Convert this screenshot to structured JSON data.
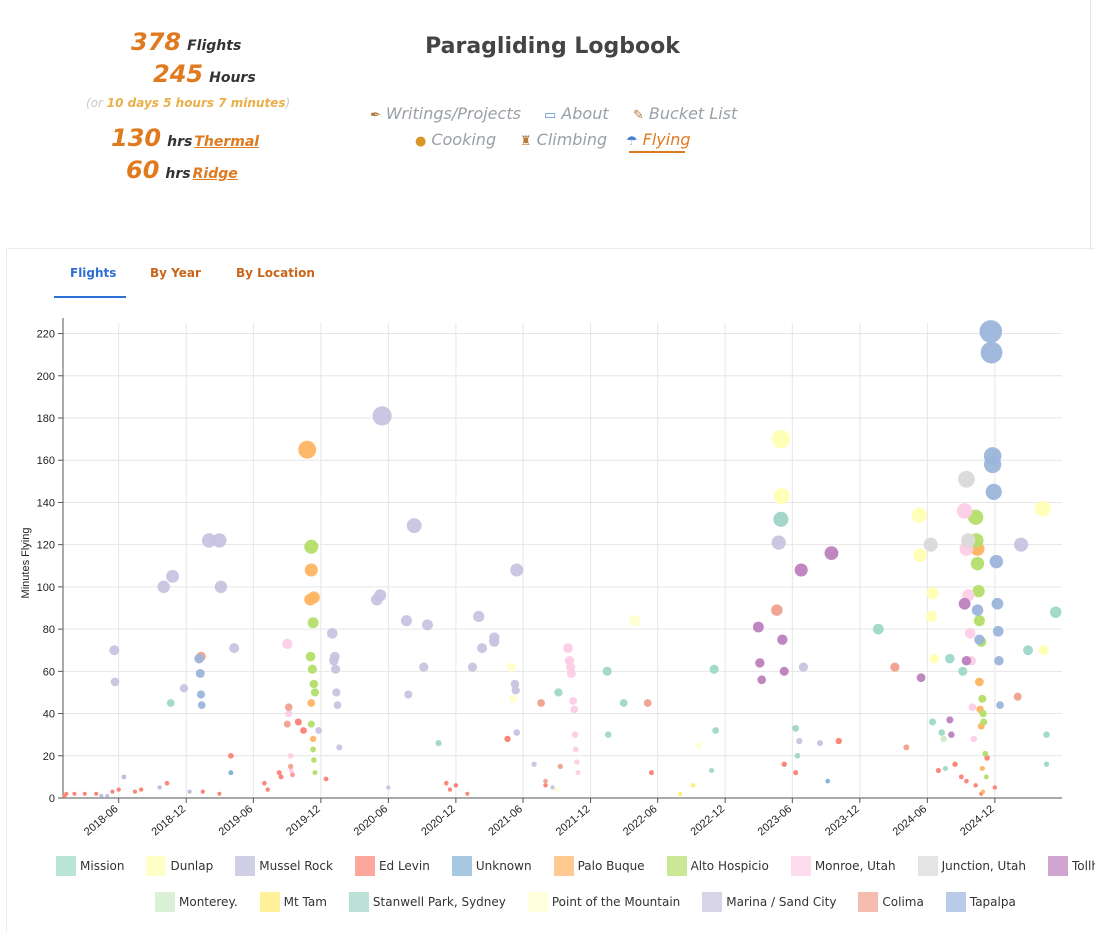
{
  "stats": {
    "flights_value": "378",
    "flights_label": "Flights",
    "hours_value": "245",
    "hours_label": "Hours",
    "duration_prefix": "(or ",
    "duration_text": "10 days 5 hours 7 minutes",
    "duration_suffix": ")",
    "thermal_value": "130",
    "thermal_unit": "hrs",
    "thermal_link": "Thermal",
    "ridge_value": "60",
    "ridge_unit": "hrs",
    "ridge_link": "Ridge"
  },
  "header": {
    "title": "Paragliding Logbook"
  },
  "nav": {
    "items": [
      {
        "label": "Writings/Projects",
        "icon": "pen-icon"
      },
      {
        "label": "About",
        "icon": "id-card-icon"
      },
      {
        "label": "Bucket List",
        "icon": "memo-icon"
      },
      {
        "label": "Cooking",
        "icon": "burger-icon"
      },
      {
        "label": "Climbing",
        "icon": "climber-icon"
      },
      {
        "label": "Flying",
        "icon": "parachute-icon",
        "active": true
      }
    ]
  },
  "tabs": [
    {
      "label": "Flights",
      "active": true
    },
    {
      "label": "By Year"
    },
    {
      "label": "By Location"
    }
  ],
  "chart_data": {
    "type": "scatter",
    "ylabel": "Minutes Flying",
    "ylim": [
      0,
      225
    ],
    "yticks": [
      0,
      20,
      40,
      60,
      80,
      100,
      120,
      140,
      160,
      180,
      200,
      220
    ],
    "xlim": [
      "2018-01-01",
      "2025-06-01"
    ],
    "xticks": [
      "2018-06",
      "2018-12",
      "2019-06",
      "2019-12",
      "2020-06",
      "2020-12",
      "2021-06",
      "2021-12",
      "2022-06",
      "2022-12",
      "2023-06",
      "2023-12",
      "2024-06",
      "2024-12"
    ],
    "grid": true,
    "legend_position": "bottom",
    "note": "point size scales with minutes flown",
    "series": [
      {
        "name": "Mission",
        "color": "#9ed8c8",
        "points": [
          [
            "2018-10-20",
            45
          ],
          [
            "2020-10-15",
            26
          ],
          [
            "2022-01-15",
            60
          ],
          [
            "2022-01-18",
            30
          ],
          [
            "2022-03-01",
            45
          ],
          [
            "2021-09-05",
            50
          ],
          [
            "2022-11-01",
            61
          ],
          [
            "2022-11-05",
            32
          ],
          [
            "2022-10-25",
            13
          ],
          [
            "2024-01-20",
            80
          ],
          [
            "2024-06-15",
            36
          ],
          [
            "2024-08-01",
            66
          ],
          [
            "2024-07-10",
            31
          ],
          [
            "2024-07-20",
            14
          ],
          [
            "2024-09-05",
            60
          ],
          [
            "2025-03-01",
            70
          ],
          [
            "2025-05-15",
            88
          ],
          [
            "2025-04-20",
            30
          ],
          [
            "2025-04-20",
            16
          ]
        ]
      },
      {
        "name": "Dunlap",
        "color": "#ffffb3",
        "points": [
          [
            "2023-05-01",
            170
          ],
          [
            "2023-05-03",
            143
          ],
          [
            "2024-05-10",
            134
          ],
          [
            "2024-05-12",
            115
          ],
          [
            "2024-06-15",
            97
          ],
          [
            "2024-06-12",
            86
          ],
          [
            "2024-06-20",
            66
          ],
          [
            "2025-04-10",
            137
          ],
          [
            "2025-04-12",
            70
          ]
        ]
      },
      {
        "name": "Mussel Rock",
        "color": "#bebada",
        "points": [
          [
            "2018-04-15",
            1
          ],
          [
            "2018-05-01",
            1
          ],
          [
            "2018-06-15",
            10
          ],
          [
            "2018-09-20",
            5
          ],
          [
            "2018-12-10",
            3
          ]
        ]
      },
      {
        "name": "Ed Levin",
        "color": "#fb8072",
        "points": [
          [
            "2018-01-05",
            1
          ],
          [
            "2018-01-10",
            2
          ],
          [
            "2018-02-01",
            2
          ],
          [
            "2018-03-01",
            2
          ],
          [
            "2018-04-01",
            2
          ],
          [
            "2018-05-15",
            3
          ],
          [
            "2018-06-01",
            4
          ],
          [
            "2018-07-15",
            3
          ],
          [
            "2018-08-01",
            4
          ],
          [
            "2018-10-10",
            7
          ],
          [
            "2019-01-15",
            3
          ],
          [
            "2019-03-01",
            2
          ],
          [
            "2019-04-01",
            20
          ],
          [
            "2019-07-01",
            7
          ],
          [
            "2019-07-10",
            4
          ],
          [
            "2019-08-10",
            12
          ],
          [
            "2019-08-15",
            10
          ],
          [
            "2019-10-01",
            36
          ],
          [
            "2019-10-15",
            32
          ],
          [
            "2019-12-15",
            9
          ],
          [
            "2020-11-05",
            7
          ],
          [
            "2020-11-15",
            4
          ],
          [
            "2020-12-01",
            6
          ],
          [
            "2021-01-01",
            2
          ],
          [
            "2021-04-20",
            28
          ],
          [
            "2021-08-01",
            6
          ],
          [
            "2022-05-15",
            12
          ],
          [
            "2023-05-10",
            16
          ],
          [
            "2023-06-10",
            12
          ],
          [
            "2023-10-05",
            27
          ],
          [
            "2024-07-01",
            13
          ],
          [
            "2024-08-15",
            16
          ],
          [
            "2024-09-01",
            10
          ],
          [
            "2024-09-15",
            8
          ],
          [
            "2024-10-10",
            6
          ],
          [
            "2024-10-25",
            2
          ],
          [
            "2024-11-10",
            19
          ],
          [
            "2024-12-01",
            5
          ]
        ]
      },
      {
        "name": "Unknown",
        "color": "#80b1d3",
        "points": [
          [
            "2019-04-01",
            12
          ],
          [
            "2023-09-05",
            8
          ]
        ]
      },
      {
        "name": "Palo Buque",
        "color": "#fdb462",
        "points": [
          [
            "2019-10-25",
            165
          ],
          [
            "2019-11-05",
            108
          ],
          [
            "2019-11-02",
            94
          ],
          [
            "2019-11-12",
            95
          ],
          [
            "2019-11-05",
            45
          ],
          [
            "2019-11-10",
            28
          ],
          [
            "2024-10-10",
            119
          ],
          [
            "2024-10-15",
            118
          ],
          [
            "2024-10-20",
            55
          ],
          [
            "2024-10-22",
            42
          ],
          [
            "2024-10-25",
            34
          ],
          [
            "2024-10-28",
            14
          ],
          [
            "2024-10-30",
            3
          ]
        ]
      },
      {
        "name": "Alto Hospicio",
        "color": "#b3de69",
        "points": [
          [
            "2019-11-05",
            119
          ],
          [
            "2019-11-10",
            83
          ],
          [
            "2019-11-03",
            67
          ],
          [
            "2019-11-08",
            61
          ],
          [
            "2019-11-12",
            54
          ],
          [
            "2019-11-15",
            50
          ],
          [
            "2019-11-05",
            35
          ],
          [
            "2019-11-10",
            23
          ],
          [
            "2019-11-12",
            18
          ],
          [
            "2019-11-15",
            12
          ],
          [
            "2024-10-10",
            133
          ],
          [
            "2024-10-12",
            122
          ],
          [
            "2024-10-15",
            111
          ],
          [
            "2024-10-18",
            98
          ],
          [
            "2024-10-20",
            84
          ],
          [
            "2024-10-25",
            74
          ],
          [
            "2024-10-28",
            47
          ],
          [
            "2024-10-30",
            40
          ],
          [
            "2024-11-01",
            36
          ],
          [
            "2024-11-05",
            21
          ],
          [
            "2024-11-08",
            10
          ]
        ]
      },
      {
        "name": "Monroe, Utah",
        "color": "#fccde5",
        "points": [
          [
            "2019-09-01",
            73
          ],
          [
            "2019-09-05",
            40
          ],
          [
            "2019-09-10",
            20
          ],
          [
            "2019-09-12",
            13
          ],
          [
            "2021-10-01",
            71
          ],
          [
            "2021-10-05",
            65
          ],
          [
            "2021-10-08",
            62
          ],
          [
            "2021-10-10",
            59
          ],
          [
            "2021-10-15",
            46
          ],
          [
            "2021-10-18",
            42
          ],
          [
            "2021-10-20",
            30
          ],
          [
            "2021-10-22",
            23
          ],
          [
            "2021-10-25",
            17
          ],
          [
            "2021-10-28",
            12
          ],
          [
            "2024-09-10",
            136
          ],
          [
            "2024-09-15",
            118
          ],
          [
            "2024-09-20",
            96
          ],
          [
            "2024-09-25",
            78
          ],
          [
            "2024-09-28",
            65
          ],
          [
            "2024-10-01",
            43
          ],
          [
            "2024-10-05",
            28
          ]
        ]
      },
      {
        "name": "Junction, Utah",
        "color": "#d9d9d9",
        "points": [
          [
            "2024-06-10",
            120
          ],
          [
            "2024-09-15",
            151
          ],
          [
            "2024-09-20",
            122
          ]
        ]
      },
      {
        "name": "Tollhouse",
        "color": "#bc80bd",
        "points": [
          [
            "2023-05-05",
            75
          ],
          [
            "2023-05-10",
            60
          ],
          [
            "2023-06-25",
            108
          ],
          [
            "2023-09-15",
            116
          ],
          [
            "2024-05-15",
            57
          ],
          [
            "2024-08-01",
            37
          ],
          [
            "2024-08-05",
            30
          ],
          [
            "2024-09-10",
            92
          ],
          [
            "2024-09-15",
            65
          ],
          [
            "2023-03-01",
            81
          ],
          [
            "2023-03-05",
            64
          ],
          [
            "2023-03-10",
            56
          ]
        ]
      },
      {
        "name": "Monterey.",
        "color": "#ccebc5",
        "points": [
          [
            "2024-07-15",
            28
          ]
        ]
      },
      {
        "name": "Mt Tam",
        "color": "#ffed6f",
        "points": [
          [
            "2022-08-01",
            2
          ],
          [
            "2022-09-05",
            6
          ]
        ]
      },
      {
        "name": "Stanwell Park, Sydney",
        "color": "#9fd4c6",
        "points": [
          [
            "2023-05-01",
            132
          ],
          [
            "2023-06-10",
            33
          ],
          [
            "2023-06-15",
            20
          ]
        ]
      },
      {
        "name": "Point of the Mountain",
        "color": "#ffffcc",
        "points": [
          [
            "2021-05-01",
            62
          ],
          [
            "2021-05-05",
            47
          ],
          [
            "2021-09-01",
            4
          ],
          [
            "2022-04-01",
            84
          ],
          [
            "2022-09-20",
            25
          ]
        ]
      },
      {
        "name": "Marina / Sand City",
        "color": "#c8c3e0",
        "points": [
          [
            "2018-05-20",
            70
          ],
          [
            "2018-05-22",
            55
          ],
          [
            "2018-10-01",
            100
          ],
          [
            "2018-10-25",
            105
          ],
          [
            "2018-11-25",
            52
          ],
          [
            "2019-02-01",
            122
          ],
          [
            "2019-03-01",
            122
          ],
          [
            "2019-03-05",
            100
          ],
          [
            "2019-04-10",
            71
          ],
          [
            "2019-11-25",
            32
          ],
          [
            "2020-01-01",
            78
          ],
          [
            "2020-01-05",
            65
          ],
          [
            "2020-01-08",
            67
          ],
          [
            "2020-01-10",
            61
          ],
          [
            "2020-01-12",
            50
          ],
          [
            "2020-01-15",
            44
          ],
          [
            "2020-01-20",
            24
          ],
          [
            "2020-05-01",
            94
          ],
          [
            "2020-05-10",
            96
          ],
          [
            "2020-05-15",
            181
          ],
          [
            "2020-06-01",
            5
          ],
          [
            "2020-07-20",
            84
          ],
          [
            "2020-07-25",
            49
          ],
          [
            "2020-08-10",
            129
          ],
          [
            "2020-09-05",
            62
          ],
          [
            "2020-09-15",
            82
          ],
          [
            "2021-01-15",
            62
          ],
          [
            "2021-02-01",
            86
          ],
          [
            "2021-02-10",
            71
          ],
          [
            "2021-03-15",
            74
          ],
          [
            "2021-03-15",
            76
          ],
          [
            "2021-05-10",
            54
          ],
          [
            "2021-05-12",
            51
          ],
          [
            "2021-05-15",
            108
          ],
          [
            "2021-05-15",
            31
          ],
          [
            "2021-07-01",
            16
          ],
          [
            "2021-08-20",
            5
          ],
          [
            "2023-04-25",
            121
          ],
          [
            "2023-06-20",
            27
          ],
          [
            "2023-07-01",
            62
          ],
          [
            "2023-08-15",
            26
          ],
          [
            "2025-02-10",
            120
          ]
        ]
      },
      {
        "name": "Colima",
        "color": "#f0a18f",
        "points": [
          [
            "2019-01-10",
            67
          ],
          [
            "2019-09-01",
            35
          ],
          [
            "2019-09-05",
            43
          ],
          [
            "2019-09-10",
            15
          ],
          [
            "2019-09-15",
            11
          ],
          [
            "2021-07-20",
            45
          ],
          [
            "2021-08-01",
            8
          ],
          [
            "2021-09-10",
            15
          ],
          [
            "2022-05-05",
            45
          ],
          [
            "2023-04-20",
            89
          ],
          [
            "2024-03-05",
            62
          ],
          [
            "2024-04-05",
            24
          ],
          [
            "2025-02-01",
            48
          ]
        ]
      },
      {
        "name": "Tapalpa",
        "color": "#9bb5db",
        "points": [
          [
            "2019-01-05",
            66
          ],
          [
            "2019-01-08",
            59
          ],
          [
            "2019-01-10",
            49
          ],
          [
            "2019-01-12",
            44
          ],
          [
            "2024-10-15",
            89
          ],
          [
            "2024-10-20",
            75
          ],
          [
            "2024-11-20",
            221
          ],
          [
            "2024-11-22",
            211
          ],
          [
            "2024-11-25",
            162
          ],
          [
            "2024-11-25",
            158
          ],
          [
            "2024-11-28",
            145
          ],
          [
            "2024-12-05",
            112
          ],
          [
            "2024-12-08",
            92
          ],
          [
            "2024-12-10",
            79
          ],
          [
            "2024-12-12",
            65
          ],
          [
            "2024-12-15",
            44
          ]
        ]
      }
    ]
  }
}
